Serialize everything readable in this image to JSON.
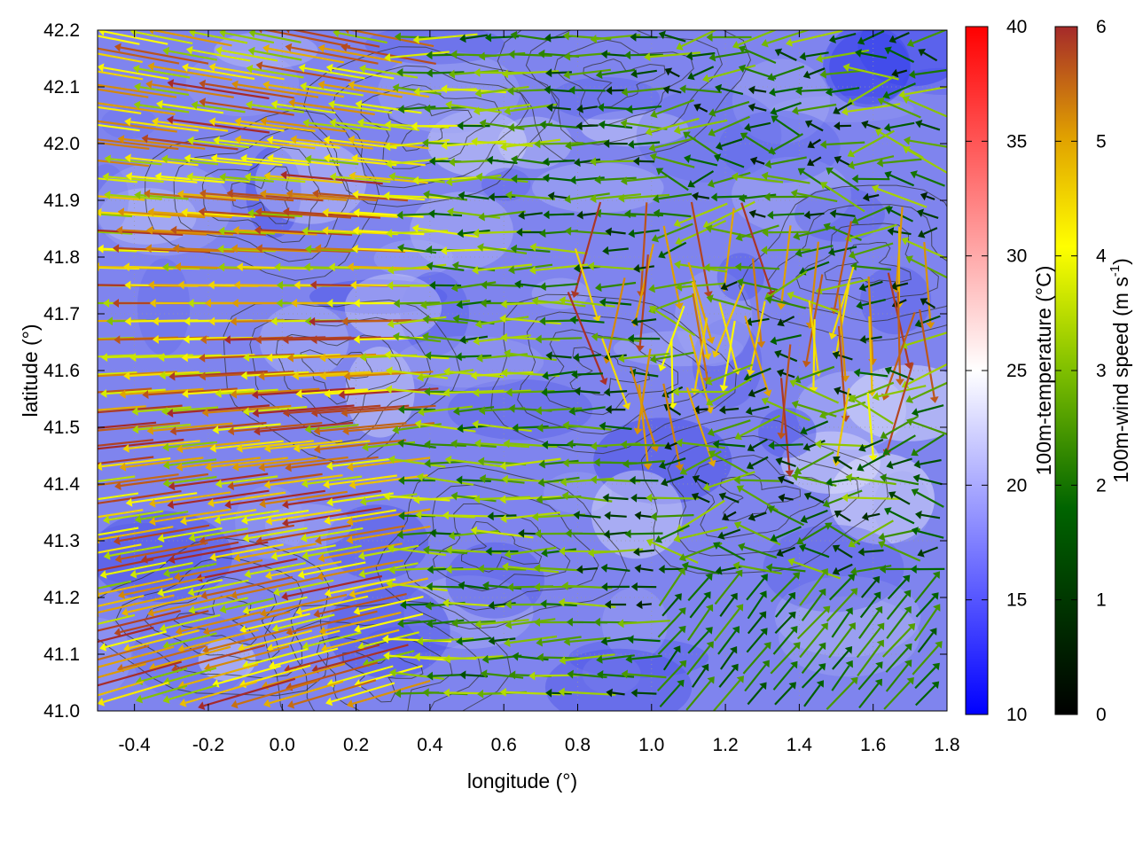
{
  "chart_data": {
    "type": "heatmap",
    "xlabel": "longitude (°)",
    "ylabel": "latitude (°)",
    "xlim": [
      -0.5,
      1.8
    ],
    "ylim": [
      41.0,
      42.2
    ],
    "xticks": [
      "-0.4",
      "-0.2",
      "0.0",
      "0.2",
      "0.4",
      "0.6",
      "0.8",
      "1.0",
      "1.2",
      "1.4",
      "1.6",
      "1.8"
    ],
    "yticks": [
      "41.0",
      "41.1",
      "41.2",
      "41.3",
      "41.4",
      "41.5",
      "41.6",
      "41.7",
      "41.8",
      "41.9",
      "42.0",
      "42.1",
      "42.2"
    ],
    "grid": true,
    "layers": [
      {
        "kind": "filled-field",
        "quantity": "100m-temperature",
        "range": [
          10,
          40
        ],
        "typical_range": [
          14,
          24
        ]
      },
      {
        "kind": "contour-lines",
        "quantity": "terrain",
        "color": "#333333"
      },
      {
        "kind": "wind-vectors",
        "quantity": "100m-wind speed",
        "range": [
          0,
          6
        ],
        "dominant_direction": "westward",
        "max_speed_region": "west of 0.6°"
      }
    ],
    "colorbars": [
      {
        "label": "100m-temperature (°C)",
        "min": 10,
        "max": 40,
        "ticks": [
          "10",
          "15",
          "20",
          "25",
          "30",
          "35",
          "40"
        ],
        "colors": [
          "#0000ff",
          "#ffffff",
          "#ff0000"
        ]
      },
      {
        "label_main": "100m-wind speed (m s",
        "label_sup": "-1",
        "label_end": ")",
        "min": 0,
        "max": 6,
        "ticks": [
          "0",
          "1",
          "2",
          "3",
          "4",
          "5",
          "6"
        ],
        "colors": [
          "#000000",
          "#006400",
          "#7fbf00",
          "#ffff00",
          "#e0a000",
          "#a52a2a"
        ]
      }
    ]
  }
}
